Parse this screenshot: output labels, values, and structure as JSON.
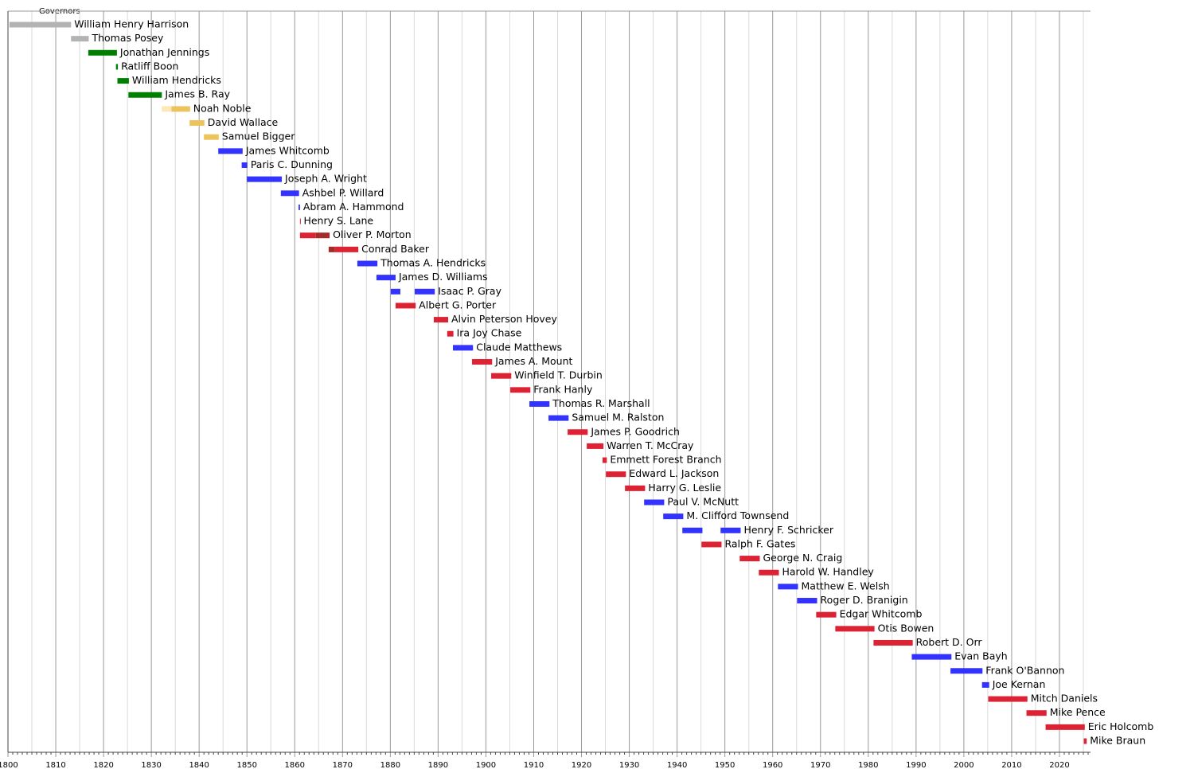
{
  "chart_data": {
    "type": "timeline",
    "title": "Governors",
    "xlim": [
      1800,
      2026.5
    ],
    "xticks": [
      1800,
      1810,
      1820,
      1830,
      1840,
      1850,
      1860,
      1870,
      1880,
      1890,
      1900,
      1910,
      1920,
      1930,
      1940,
      1950,
      1960,
      1970,
      1980,
      1990,
      2000,
      2010,
      2020
    ],
    "grid_minor": [
      1805,
      1815,
      1825,
      1835,
      1845,
      1855,
      1865,
      1875,
      1885,
      1895,
      1905,
      1915,
      1925,
      1935,
      1945,
      1955,
      1965,
      1975,
      1985,
      1995,
      2005,
      2015,
      2025
    ],
    "minor_xticks": [
      1801,
      1802,
      1803,
      1804,
      1805,
      1806,
      1807,
      1808,
      1809,
      1811,
      1812,
      1813,
      1814,
      1815,
      1816,
      1817,
      1818,
      1819,
      1821,
      1822,
      1823,
      1824,
      1825,
      1826,
      1827,
      1828,
      1829,
      1831,
      1832,
      1833,
      1834,
      1835,
      1836,
      1837,
      1838,
      1839,
      1841,
      1842,
      1843,
      1844,
      1845,
      1846,
      1847,
      1848,
      1849,
      1851,
      1852,
      1853,
      1854,
      1855,
      1856,
      1857,
      1858,
      1859,
      1861,
      1862,
      1863,
      1864,
      1865,
      1866,
      1867,
      1868,
      1869,
      1871,
      1872,
      1873,
      1874,
      1875,
      1876,
      1877,
      1878,
      1879,
      1881,
      1882,
      1883,
      1884,
      1885,
      1886,
      1887,
      1888,
      1889,
      1891,
      1892,
      1893,
      1894,
      1895,
      1896,
      1897,
      1898,
      1899,
      1901,
      1902,
      1903,
      1904,
      1905,
      1906,
      1907,
      1908,
      1909,
      1911,
      1912,
      1913,
      1914,
      1915,
      1916,
      1917,
      1918,
      1919,
      1921,
      1922,
      1923,
      1924,
      1925,
      1926,
      1927,
      1928,
      1929,
      1931,
      1932,
      1933,
      1934,
      1935,
      1936,
      1937,
      1938,
      1939,
      1941,
      1942,
      1943,
      1944,
      1945,
      1946,
      1947,
      1948,
      1949,
      1951,
      1952,
      1953,
      1954,
      1955,
      1956,
      1957,
      1958,
      1959,
      1961,
      1962,
      1963,
      1964,
      1965,
      1966,
      1967,
      1968,
      1969,
      1971,
      1972,
      1973,
      1974,
      1975,
      1976,
      1977,
      1978,
      1979,
      1981,
      1982,
      1983,
      1984,
      1985,
      1986,
      1987,
      1988,
      1989,
      1991,
      1992,
      1993,
      1994,
      1995,
      1996,
      1997,
      1998,
      1999,
      2001,
      2002,
      2003,
      2004,
      2005,
      2006,
      2007,
      2008,
      2009,
      2011,
      2012,
      2013,
      2014,
      2015,
      2016,
      2017,
      2018,
      2019,
      2021,
      2022,
      2023,
      2024,
      2025,
      2026
    ],
    "rows": [
      {
        "name": "William Henry Harrison",
        "segments": [
          {
            "start": 1800.3,
            "end": 1813.2,
            "color": "#b3b3b3"
          }
        ]
      },
      {
        "name": "Thomas Posey",
        "segments": [
          {
            "start": 1813.2,
            "end": 1816.9,
            "color": "#b3b3b3"
          }
        ]
      },
      {
        "name": "Jonathan Jennings",
        "segments": [
          {
            "start": 1816.8,
            "end": 1822.8,
            "color": "#008000"
          }
        ]
      },
      {
        "name": "Ratliff Boon",
        "segments": [
          {
            "start": 1822.6,
            "end": 1823.0,
            "color": "#008000"
          }
        ]
      },
      {
        "name": "William Hendricks",
        "segments": [
          {
            "start": 1822.9,
            "end": 1825.3,
            "color": "#008000"
          }
        ]
      },
      {
        "name": "James B. Ray",
        "segments": [
          {
            "start": 1825.2,
            "end": 1832.2,
            "color": "#008000"
          }
        ]
      },
      {
        "name": "Noah Noble",
        "segments": [
          {
            "start": 1832.2,
            "end": 1834.2,
            "color": "#fde6b8"
          },
          {
            "start": 1834.2,
            "end": 1838.1,
            "color": "#ecc35c"
          }
        ]
      },
      {
        "name": "David Wallace",
        "segments": [
          {
            "start": 1838.0,
            "end": 1841.1,
            "color": "#ecc35c"
          }
        ]
      },
      {
        "name": "Samuel Bigger",
        "segments": [
          {
            "start": 1841.0,
            "end": 1844.1,
            "color": "#ecc35c"
          }
        ]
      },
      {
        "name": "James Whitcomb",
        "segments": [
          {
            "start": 1844.0,
            "end": 1849.1,
            "color": "#3333ff"
          }
        ]
      },
      {
        "name": "Paris C. Dunning",
        "segments": [
          {
            "start": 1848.9,
            "end": 1850.1,
            "color": "#3333ff"
          }
        ]
      },
      {
        "name": "Joseph A. Wright",
        "segments": [
          {
            "start": 1850.0,
            "end": 1857.3,
            "color": "#3333ff"
          }
        ]
      },
      {
        "name": "Ashbel P. Willard",
        "segments": [
          {
            "start": 1857.1,
            "end": 1860.9,
            "color": "#3333ff"
          }
        ]
      },
      {
        "name": "Abram A. Hammond",
        "segments": [
          {
            "start": 1860.8,
            "end": 1861.1,
            "color": "#3333ff"
          }
        ]
      },
      {
        "name": "Henry S. Lane",
        "segments": [
          {
            "start": 1861.1,
            "end": 1861.2,
            "color": "#dd2233"
          }
        ]
      },
      {
        "name": "Oliver P. Morton",
        "segments": [
          {
            "start": 1861.1,
            "end": 1864.4,
            "color": "#dd2233"
          },
          {
            "start": 1864.4,
            "end": 1867.3,
            "color": "#a52a2a"
          }
        ]
      },
      {
        "name": "Conrad Baker",
        "segments": [
          {
            "start": 1867.1,
            "end": 1868.4,
            "color": "#a52a2a"
          },
          {
            "start": 1868.4,
            "end": 1873.3,
            "color": "#dd2233"
          }
        ]
      },
      {
        "name": "Thomas A. Hendricks",
        "segments": [
          {
            "start": 1873.1,
            "end": 1877.3,
            "color": "#3333ff"
          }
        ]
      },
      {
        "name": "James D. Williams",
        "segments": [
          {
            "start": 1877.1,
            "end": 1881.1,
            "color": "#3333ff"
          }
        ]
      },
      {
        "name": "Isaac P. Gray",
        "segments": [
          {
            "start": 1880.1,
            "end": 1882.1,
            "color": "#3333ff"
          },
          {
            "start": 1885.1,
            "end": 1889.3,
            "color": "#3333ff"
          }
        ]
      },
      {
        "name": "Albert G. Porter",
        "segments": [
          {
            "start": 1881.1,
            "end": 1885.3,
            "color": "#dd2233"
          }
        ]
      },
      {
        "name": "Alvin Peterson Hovey",
        "segments": [
          {
            "start": 1889.1,
            "end": 1892.1,
            "color": "#dd2233"
          }
        ]
      },
      {
        "name": "Ira Joy Chase",
        "segments": [
          {
            "start": 1891.9,
            "end": 1893.2,
            "color": "#dd2233"
          }
        ]
      },
      {
        "name": "Claude Matthews",
        "segments": [
          {
            "start": 1893.1,
            "end": 1897.3,
            "color": "#3333ff"
          }
        ]
      },
      {
        "name": "James A. Mount",
        "segments": [
          {
            "start": 1897.1,
            "end": 1901.3,
            "color": "#dd2233"
          }
        ]
      },
      {
        "name": "Winfield T. Durbin",
        "segments": [
          {
            "start": 1901.1,
            "end": 1905.3,
            "color": "#dd2233"
          }
        ]
      },
      {
        "name": "Frank Hanly",
        "segments": [
          {
            "start": 1905.1,
            "end": 1909.3,
            "color": "#dd2233"
          }
        ]
      },
      {
        "name": "Thomas R. Marshall",
        "segments": [
          {
            "start": 1909.1,
            "end": 1913.3,
            "color": "#3333ff"
          }
        ]
      },
      {
        "name": "Samuel M. Ralston",
        "segments": [
          {
            "start": 1913.1,
            "end": 1917.3,
            "color": "#3333ff"
          }
        ]
      },
      {
        "name": "James P. Goodrich",
        "segments": [
          {
            "start": 1917.1,
            "end": 1921.3,
            "color": "#dd2233"
          }
        ]
      },
      {
        "name": "Warren T. McCray",
        "segments": [
          {
            "start": 1921.1,
            "end": 1924.6,
            "color": "#dd2233"
          }
        ]
      },
      {
        "name": "Emmett Forest Branch",
        "segments": [
          {
            "start": 1924.4,
            "end": 1925.3,
            "color": "#dd2233"
          }
        ]
      },
      {
        "name": "Edward L. Jackson",
        "segments": [
          {
            "start": 1925.1,
            "end": 1929.3,
            "color": "#dd2233"
          }
        ]
      },
      {
        "name": "Harry G. Leslie",
        "segments": [
          {
            "start": 1929.1,
            "end": 1933.3,
            "color": "#dd2233"
          }
        ]
      },
      {
        "name": "Paul V. McNutt",
        "segments": [
          {
            "start": 1933.1,
            "end": 1937.3,
            "color": "#3333ff"
          }
        ]
      },
      {
        "name": "M. Clifford Townsend",
        "segments": [
          {
            "start": 1937.1,
            "end": 1941.3,
            "color": "#3333ff"
          }
        ]
      },
      {
        "name": "Henry F. Schricker",
        "segments": [
          {
            "start": 1941.1,
            "end": 1945.3,
            "color": "#3333ff"
          },
          {
            "start": 1949.1,
            "end": 1953.3,
            "color": "#3333ff"
          }
        ]
      },
      {
        "name": "Ralph F. Gates",
        "segments": [
          {
            "start": 1945.1,
            "end": 1949.3,
            "color": "#dd2233"
          }
        ]
      },
      {
        "name": "George N. Craig",
        "segments": [
          {
            "start": 1953.1,
            "end": 1957.3,
            "color": "#dd2233"
          }
        ]
      },
      {
        "name": "Harold W. Handley",
        "segments": [
          {
            "start": 1957.1,
            "end": 1961.3,
            "color": "#dd2233"
          }
        ]
      },
      {
        "name": "Matthew E. Welsh",
        "segments": [
          {
            "start": 1961.1,
            "end": 1965.3,
            "color": "#3333ff"
          }
        ]
      },
      {
        "name": "Roger D. Branigin",
        "segments": [
          {
            "start": 1965.1,
            "end": 1969.3,
            "color": "#3333ff"
          }
        ]
      },
      {
        "name": "Edgar Whitcomb",
        "segments": [
          {
            "start": 1969.1,
            "end": 1973.3,
            "color": "#dd2233"
          }
        ]
      },
      {
        "name": "Otis Bowen",
        "segments": [
          {
            "start": 1973.1,
            "end": 1981.3,
            "color": "#dd2233"
          }
        ]
      },
      {
        "name": "Robert D. Orr",
        "segments": [
          {
            "start": 1981.1,
            "end": 1989.3,
            "color": "#dd2233"
          }
        ]
      },
      {
        "name": "Evan Bayh",
        "segments": [
          {
            "start": 1989.1,
            "end": 1997.4,
            "color": "#3333ff"
          }
        ]
      },
      {
        "name": "Frank O'Bannon",
        "segments": [
          {
            "start": 1997.2,
            "end": 2003.9,
            "color": "#3333ff"
          }
        ]
      },
      {
        "name": "Joe Kernan",
        "segments": [
          {
            "start": 2003.8,
            "end": 2005.3,
            "color": "#3333ff"
          }
        ]
      },
      {
        "name": "Mitch Daniels",
        "segments": [
          {
            "start": 2005.1,
            "end": 2013.3,
            "color": "#dd2233"
          }
        ]
      },
      {
        "name": "Mike Pence",
        "segments": [
          {
            "start": 2013.1,
            "end": 2017.3,
            "color": "#dd2233"
          }
        ]
      },
      {
        "name": "Eric Holcomb",
        "segments": [
          {
            "start": 2017.1,
            "end": 2025.3,
            "color": "#dd2233"
          }
        ]
      },
      {
        "name": "Mike Braun",
        "segments": [
          {
            "start": 2025.1,
            "end": 2025.7,
            "color": "#dd2233"
          }
        ]
      }
    ]
  }
}
